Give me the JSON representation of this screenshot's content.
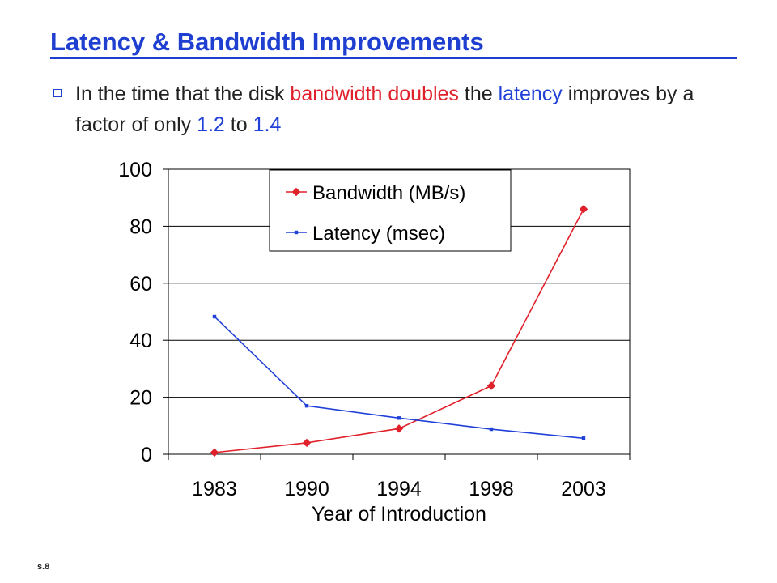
{
  "slide": {
    "title": "Latency & Bandwidth Improvements",
    "bullet": {
      "t1": "In the time that the disk ",
      "t2": "bandwidth",
      "t3": " ",
      "t4": "doubles",
      "t5": " the ",
      "t6": "latency",
      "t7": " improves by a factor of only ",
      "t8": "1.2",
      "t9": " to ",
      "t10": "1.4"
    },
    "footer": "s.8"
  },
  "colors": {
    "title": "#1f3fd0",
    "bandwidth": "#e0202a",
    "latency": "#2040d8"
  },
  "chart_data": {
    "type": "line",
    "categories": [
      "1983",
      "1990",
      "1994",
      "1998",
      "2003"
    ],
    "series": [
      {
        "name": "Bandwidth (MB/s)",
        "values": [
          0.6,
          4,
          9,
          24,
          86
        ],
        "color": "#e0202a",
        "marker": "diamond"
      },
      {
        "name": "Latency (msec)",
        "values": [
          48.3,
          17,
          12.7,
          8.8,
          5.6
        ],
        "color": "#2040d8",
        "marker": "square"
      }
    ],
    "xlabel": "Year of Introduction",
    "ylabel": "",
    "ylim": [
      0,
      100
    ],
    "yticks": [
      0,
      20,
      40,
      60,
      80,
      100
    ],
    "grid": true,
    "legend": "top-left inside plot area"
  }
}
